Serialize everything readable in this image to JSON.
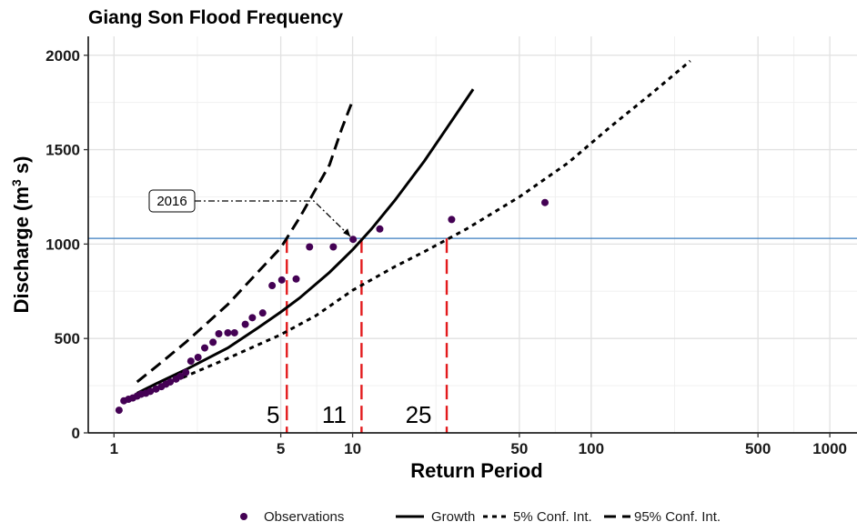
{
  "chart_data": {
    "type": "scatter",
    "title": "Giang Son Flood Frequency",
    "xlabel": "Return Period",
    "ylabel": "Discharge (m³ s)",
    "ylabel_base": "Discharge (m",
    "ylabel_sup": "3",
    "ylabel_tail": " s)",
    "xscale": "log",
    "xlim": [
      0.78,
      1300
    ],
    "ylim": [
      0,
      2100
    ],
    "xticks": [
      1,
      5,
      10,
      50,
      100,
      500,
      1000
    ],
    "yticks": [
      0,
      500,
      1000,
      1500,
      2000
    ],
    "grid": true,
    "legend_position": "bottom",
    "colors": {
      "observations": "#440154",
      "threshold": "#3a7dbf",
      "return_period_lines": "#e31a1c",
      "curves": "#000000"
    },
    "observations": {
      "name": "Observations",
      "points": [
        [
          1.05,
          120
        ],
        [
          1.1,
          170
        ],
        [
          1.15,
          178
        ],
        [
          1.2,
          185
        ],
        [
          1.25,
          195
        ],
        [
          1.3,
          205
        ],
        [
          1.36,
          210
        ],
        [
          1.42,
          220
        ],
        [
          1.5,
          232
        ],
        [
          1.58,
          245
        ],
        [
          1.65,
          258
        ],
        [
          1.72,
          270
        ],
        [
          1.82,
          285
        ],
        [
          1.9,
          300
        ],
        [
          2.0,
          320
        ],
        [
          2.1,
          380
        ],
        [
          2.25,
          400
        ],
        [
          2.4,
          450
        ],
        [
          2.6,
          480
        ],
        [
          2.75,
          525
        ],
        [
          3.0,
          530
        ],
        [
          3.2,
          530
        ],
        [
          3.55,
          575
        ],
        [
          3.8,
          610
        ],
        [
          4.2,
          635
        ],
        [
          4.6,
          780
        ],
        [
          5.05,
          810
        ],
        [
          5.8,
          815
        ],
        [
          6.6,
          985
        ],
        [
          8.3,
          985
        ],
        [
          10.05,
          1025
        ],
        [
          13.0,
          1080
        ],
        [
          26.0,
          1130
        ],
        [
          64.0,
          1220
        ]
      ]
    },
    "series": [
      {
        "name": "Growth",
        "style": "solid",
        "points": [
          [
            1.25,
            210
          ],
          [
            1.5,
            260
          ],
          [
            2,
            335
          ],
          [
            3,
            450
          ],
          [
            4,
            555
          ],
          [
            5,
            640
          ],
          [
            6,
            715
          ],
          [
            8,
            850
          ],
          [
            10,
            970
          ],
          [
            12,
            1080
          ],
          [
            15,
            1230
          ],
          [
            20,
            1440
          ],
          [
            25,
            1620
          ],
          [
            32,
            1820
          ]
        ]
      },
      {
        "name": "5% Conf. Int.",
        "style": "dotted",
        "points": [
          [
            1.3,
            195
          ],
          [
            2,
            300
          ],
          [
            3,
            395
          ],
          [
            5,
            520
          ],
          [
            7,
            620
          ],
          [
            10,
            755
          ],
          [
            15,
            880
          ],
          [
            20,
            960
          ],
          [
            30,
            1080
          ],
          [
            50,
            1250
          ],
          [
            80,
            1430
          ],
          [
            120,
            1620
          ],
          [
            180,
            1800
          ],
          [
            260,
            1970
          ]
        ]
      },
      {
        "name": "95% Conf. Int.",
        "style": "dashed",
        "points": [
          [
            1.25,
            270
          ],
          [
            1.5,
            350
          ],
          [
            2,
            480
          ],
          [
            3,
            680
          ],
          [
            4,
            850
          ],
          [
            5,
            980
          ],
          [
            6,
            1140
          ],
          [
            7,
            1290
          ],
          [
            8,
            1420
          ],
          [
            9,
            1610
          ],
          [
            10,
            1760
          ]
        ]
      }
    ],
    "threshold": {
      "y": 1030
    },
    "return_periods": [
      {
        "label": "5",
        "x": 5.3,
        "y_top": 1030
      },
      {
        "label": "11",
        "x": 10.9,
        "y_top": 1030
      },
      {
        "label": "25",
        "x": 24.8,
        "y_top": 1030
      }
    ],
    "annotation": {
      "label": "2016",
      "x": 10.05,
      "y": 1025
    }
  }
}
